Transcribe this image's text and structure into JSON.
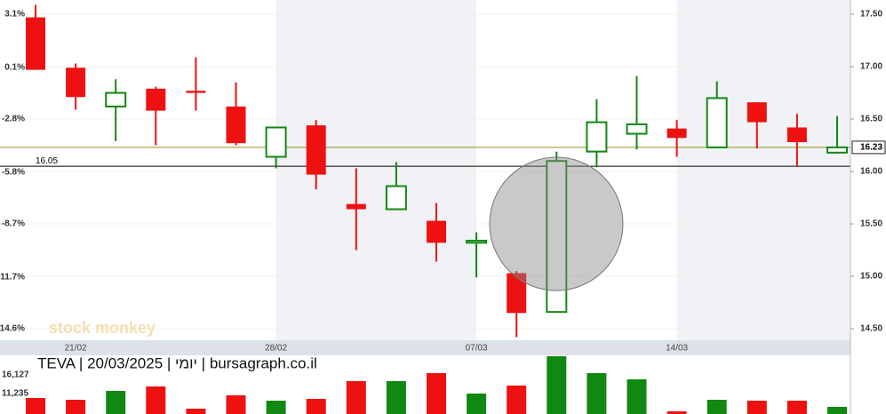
{
  "chart_data": [
    {
      "type": "candlestick",
      "title": "TEVA | 20/03/2025 | יומי | bursagraph.co.il",
      "watermark": "stock monkey",
      "categories": [
        null,
        "21/02",
        null,
        null,
        null,
        null,
        "28/02",
        null,
        null,
        null,
        null,
        "07/03",
        null,
        null,
        null,
        null,
        "14/03",
        null,
        null,
        null,
        null
      ],
      "open": [
        17.47,
        16.99,
        16.62,
        16.79,
        16.77,
        16.62,
        16.14,
        16.44,
        15.69,
        15.64,
        15.53,
        15.32,
        15.03,
        14.66,
        16.19,
        16.36,
        16.41,
        16.23,
        16.66,
        16.42,
        16.18
      ],
      "high": [
        17.59,
        17.03,
        16.88,
        16.81,
        17.09,
        16.85,
        16.42,
        16.49,
        16.03,
        16.09,
        15.7,
        15.42,
        15.05,
        16.19,
        16.69,
        16.91,
        16.49,
        16.86,
        16.66,
        16.55,
        16.53
      ],
      "low": [
        16.97,
        16.59,
        16.29,
        16.25,
        16.58,
        16.25,
        16.03,
        15.83,
        15.25,
        15.64,
        15.14,
        14.99,
        14.42,
        14.66,
        16.04,
        16.21,
        16.14,
        16.23,
        16.22,
        16.05,
        16.17
      ],
      "close": [
        16.97,
        16.71,
        16.75,
        16.58,
        16.75,
        16.27,
        16.42,
        15.97,
        15.64,
        15.86,
        15.32,
        15.34,
        14.65,
        16.1,
        16.47,
        16.45,
        16.32,
        16.7,
        16.47,
        16.28,
        16.23
      ],
      "up_color": "#118811",
      "down_color": "#ee1111",
      "reference_line": 16.05,
      "ylim": [
        14.39,
        17.636
      ],
      "yticks": [
        {
          "value": 14.5,
          "label": "14.50"
        },
        {
          "value": 15,
          "label": "15.00"
        },
        {
          "value": 15.5,
          "label": "15.50"
        },
        {
          "value": 16,
          "label": "16.00"
        },
        {
          "value": 16.5,
          "label": "16.50"
        },
        {
          "value": 17,
          "label": "17.00"
        },
        {
          "value": 17.5,
          "label": "17.50"
        }
      ],
      "y2lim": [
        -15.25,
        3.9
      ],
      "y2ticks": [
        {
          "value": -14.6,
          "label": "-14.6%"
        },
        {
          "value": -11.7,
          "label": "-11.7%"
        },
        {
          "value": -8.7,
          "label": "-8.7%"
        },
        {
          "value": -5.8,
          "label": "-5.8%"
        },
        {
          "value": -2.8,
          "label": "-2.8%"
        },
        {
          "value": 0.1,
          "label": "0.1%"
        },
        {
          "value": 3.1,
          "label": "3.1%"
        }
      ],
      "grid": true
    },
    {
      "type": "bar",
      "values": [
        10070,
        9600,
        11934,
        13100,
        7274,
        10769,
        9370,
        9837,
        14500,
        14500,
        16594,
        11235,
        13332,
        21021,
        16594,
        14963,
        6575,
        9604,
        9370,
        9370,
        7740
      ],
      "ylim": [
        5876,
        21254
      ],
      "yticks": [
        {
          "value": 11235,
          "label": "11,235"
        },
        {
          "value": 16127,
          "label": "16,127"
        }
      ]
    }
  ]
}
